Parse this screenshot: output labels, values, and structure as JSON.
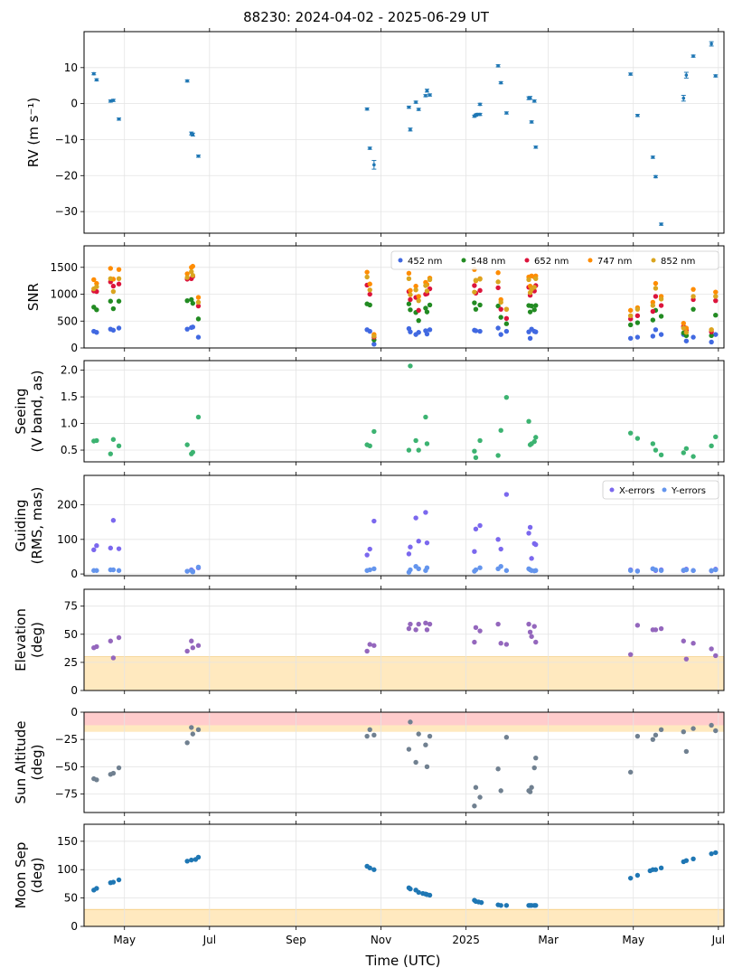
{
  "figure": {
    "title": "88230: 2024-04-02 - 2025-06-29 UT",
    "xlabel": "Time (UTC)",
    "x_range": [
      "2024-04-02",
      "2025-07-05"
    ],
    "x_ticks": [
      {
        "date": "2024-05-01",
        "label": "May"
      },
      {
        "date": "2024-07-01",
        "label": "Jul"
      },
      {
        "date": "2024-09-01",
        "label": "Sep"
      },
      {
        "date": "2024-11-01",
        "label": "Nov"
      },
      {
        "date": "2025-01-01",
        "label": "2025"
      },
      {
        "date": "2025-03-01",
        "label": "Mar"
      },
      {
        "date": "2025-05-01",
        "label": "May"
      },
      {
        "date": "2025-07-01",
        "label": "Jul"
      }
    ],
    "colors": {
      "rv": "#1f77b4",
      "seeing": "#3cb371",
      "guiding_x": "#7b68ee",
      "guiding_y": "#6495ed",
      "elevation": "#9467bd",
      "sun": "#708090",
      "moon": "#1f77b4",
      "limit_band": "#ffe9bf",
      "sun_band": "#ffcccc"
    }
  },
  "chart_data": [
    {
      "type": "scatter",
      "ylabel": "RV (m s⁻¹)",
      "ylim": [
        -36,
        20
      ],
      "yticks": [
        10,
        0,
        -10,
        -20,
        -30
      ],
      "tick_labels": [
        "10",
        "0",
        "−10",
        "−20",
        "−30"
      ],
      "errorbars": true,
      "x": [
        "2024-04-09",
        "2024-04-11",
        "2024-04-21",
        "2024-04-23",
        "2024-04-27",
        "2024-06-15",
        "2024-06-18",
        "2024-06-19",
        "2024-06-23",
        "2024-10-22",
        "2024-10-24",
        "2024-10-27",
        "2024-11-21",
        "2024-11-22",
        "2024-11-26",
        "2024-11-28",
        "2024-12-03",
        "2024-12-04",
        "2024-12-06",
        "2025-01-07",
        "2025-01-08",
        "2025-01-09",
        "2025-01-11",
        "2025-01-11",
        "2025-01-24",
        "2025-01-26",
        "2025-01-30",
        "2025-02-15",
        "2025-02-16",
        "2025-02-17",
        "2025-02-19",
        "2025-02-20",
        "2025-04-29",
        "2025-05-04",
        "2025-05-15",
        "2025-05-17",
        "2025-05-21",
        "2025-06-06",
        "2025-06-08",
        "2025-06-13",
        "2025-06-26",
        "2025-06-29"
      ],
      "values": [
        8.3,
        6.6,
        0.7,
        0.9,
        -4.3,
        6.3,
        -8.3,
        -8.6,
        -14.6,
        -1.5,
        -12.4,
        -17,
        -1,
        -7.2,
        0.4,
        -1.6,
        2.2,
        3.6,
        2.4,
        -3.5,
        -3.2,
        -3.0,
        -3.0,
        -0.2,
        10.5,
        5.8,
        -2.6,
        1.5,
        1.6,
        -5.1,
        0.7,
        -12.1,
        8.2,
        -3.3,
        -14.9,
        -20.3,
        -33.5,
        1.5,
        7.9,
        13.2,
        16.6,
        7.7
      ],
      "errors": [
        0.3,
        0.3,
        0.3,
        0.3,
        0.3,
        0.3,
        0.4,
        0.4,
        0.3,
        0.3,
        0.3,
        1.2,
        0.3,
        0.4,
        0.3,
        0.3,
        0.3,
        0.4,
        0.3,
        0.3,
        0.3,
        0.3,
        0.3,
        0.3,
        0.3,
        0.3,
        0.3,
        0.4,
        0.4,
        0.3,
        0.3,
        0.3,
        0.3,
        0.3,
        0.3,
        0.3,
        0.3,
        0.8,
        0.8,
        0.3,
        0.6,
        0.3
      ]
    },
    {
      "type": "scatter",
      "ylabel": "SNR",
      "ylim": [
        0,
        1900
      ],
      "yticks": [
        0,
        500,
        1000,
        1500
      ],
      "tick_labels": [
        "0",
        "500",
        "1000",
        "1500"
      ],
      "legend": "top-right",
      "x": [
        "2024-04-09",
        "2024-04-11",
        "2024-04-21",
        "2024-04-23",
        "2024-04-27",
        "2024-06-15",
        "2024-06-18",
        "2024-06-19",
        "2024-06-23",
        "2024-10-22",
        "2024-10-24",
        "2024-10-27",
        "2024-11-21",
        "2024-11-22",
        "2024-11-26",
        "2024-11-28",
        "2024-12-03",
        "2024-12-04",
        "2024-12-06",
        "2025-01-07",
        "2025-01-08",
        "2025-01-11",
        "2025-01-24",
        "2025-01-26",
        "2025-01-30",
        "2025-02-15",
        "2025-02-16",
        "2025-02-17",
        "2025-02-19",
        "2025-02-20",
        "2025-04-29",
        "2025-05-04",
        "2025-05-15",
        "2025-05-17",
        "2025-05-21",
        "2025-06-06",
        "2025-06-08",
        "2025-06-13",
        "2025-06-26",
        "2025-06-29"
      ],
      "series": [
        {
          "name": "452 nm",
          "color": "#4169e1",
          "values": [
            310,
            290,
            350,
            330,
            370,
            350,
            380,
            390,
            200,
            340,
            310,
            70,
            360,
            300,
            250,
            290,
            320,
            260,
            340,
            330,
            320,
            310,
            370,
            250,
            310,
            300,
            180,
            350,
            310,
            300,
            180,
            200,
            220,
            340,
            250,
            250,
            130,
            200,
            110,
            250
          ]
        },
        {
          "name": "548 nm",
          "color": "#228b22",
          "values": [
            760,
            710,
            870,
            730,
            870,
            880,
            900,
            830,
            540,
            820,
            800,
            150,
            820,
            710,
            660,
            510,
            740,
            670,
            800,
            840,
            720,
            800,
            780,
            570,
            450,
            790,
            670,
            780,
            710,
            790,
            430,
            470,
            520,
            700,
            590,
            280,
            230,
            720,
            230,
            610
          ]
        },
        {
          "name": "652 nm",
          "color": "#dc143c",
          "values": [
            1060,
            1050,
            1230,
            1150,
            1190,
            1280,
            1290,
            1330,
            780,
            1170,
            1000,
            200,
            1050,
            900,
            940,
            700,
            1000,
            1010,
            1100,
            1160,
            1020,
            1070,
            1120,
            720,
            550,
            1130,
            980,
            1100,
            1060,
            1160,
            540,
            600,
            680,
            960,
            790,
            400,
            330,
            900,
            300,
            880
          ]
        },
        {
          "name": "747 nm",
          "color": "#ff8c00",
          "values": [
            1270,
            1200,
            1480,
            1280,
            1460,
            1380,
            1500,
            1520,
            940,
            1410,
            1190,
            250,
            1390,
            1070,
            1150,
            960,
            1220,
            1180,
            1300,
            1460,
            1250,
            1290,
            1400,
            900,
            720,
            1320,
            1150,
            1340,
            1320,
            1340,
            700,
            750,
            850,
            1200,
            960,
            460,
            370,
            1090,
            340,
            1040
          ]
        },
        {
          "name": "852 nm",
          "color": "#daa520",
          "values": [
            1100,
            1140,
            1290,
            1050,
            1290,
            1310,
            1420,
            1350,
            850,
            1320,
            1080,
            220,
            1290,
            990,
            1080,
            880,
            1160,
            1060,
            1270,
            1040,
            1260,
            1280,
            1230,
            850,
            720,
            1270,
            1030,
            1090,
            1130,
            1290,
            600,
            720,
            790,
            1110,
            910,
            370,
            290,
            960,
            340,
            960
          ]
        }
      ]
    },
    {
      "type": "scatter",
      "ylabel": "Seeing\n(V band, as)",
      "ylim": [
        0.28,
        2.18
      ],
      "yticks": [
        0.5,
        1.0,
        1.5,
        2.0
      ],
      "tick_labels": [
        "0.5",
        "1.0",
        "1.5",
        "2.0"
      ],
      "x": [
        "2024-04-09",
        "2024-04-11",
        "2024-04-21",
        "2024-04-23",
        "2024-04-27",
        "2024-06-15",
        "2024-06-18",
        "2024-06-19",
        "2024-06-23",
        "2024-10-22",
        "2024-10-24",
        "2024-10-27",
        "2024-11-21",
        "2024-11-22",
        "2024-11-26",
        "2024-11-28",
        "2024-12-03",
        "2024-12-04",
        "2025-01-07",
        "2025-01-08",
        "2025-01-11",
        "2025-01-24",
        "2025-01-26",
        "2025-01-30",
        "2025-02-15",
        "2025-02-16",
        "2025-02-17",
        "2025-02-19",
        "2025-02-20",
        "2025-04-29",
        "2025-05-04",
        "2025-05-15",
        "2025-05-17",
        "2025-05-21",
        "2025-06-06",
        "2025-06-08",
        "2025-06-13",
        "2025-06-26",
        "2025-06-29"
      ],
      "values": [
        0.67,
        0.68,
        0.43,
        0.7,
        0.58,
        0.6,
        0.43,
        0.46,
        1.12,
        0.6,
        0.58,
        0.85,
        0.5,
        2.08,
        0.68,
        0.5,
        1.12,
        0.62,
        0.48,
        0.36,
        0.68,
        0.4,
        0.87,
        1.49,
        1.04,
        0.6,
        0.62,
        0.66,
        0.74,
        0.82,
        0.72,
        0.62,
        0.5,
        0.41,
        0.45,
        0.53,
        0.38,
        0.58,
        0.75
      ]
    },
    {
      "type": "scatter",
      "ylabel": "Guiding\n(RMS, mas)",
      "ylim": [
        -5,
        285
      ],
      "yticks": [
        0,
        100,
        200
      ],
      "tick_labels": [
        "0",
        "100",
        "200"
      ],
      "legend": "top-right",
      "x": [
        "2024-04-09",
        "2024-04-11",
        "2024-04-21",
        "2024-04-23",
        "2024-04-27",
        "2024-06-15",
        "2024-06-18",
        "2024-06-19",
        "2024-06-23",
        "2024-10-22",
        "2024-10-24",
        "2024-10-27",
        "2024-11-21",
        "2024-11-22",
        "2024-11-26",
        "2024-11-28",
        "2024-12-03",
        "2024-12-04",
        "2025-01-07",
        "2025-01-08",
        "2025-01-11",
        "2025-01-24",
        "2025-01-26",
        "2025-01-30",
        "2025-02-15",
        "2025-02-16",
        "2025-02-17",
        "2025-02-19",
        "2025-02-20",
        "2025-04-29",
        "2025-05-04",
        "2025-05-15",
        "2025-05-17",
        "2025-05-21",
        "2025-06-06",
        "2025-06-08",
        "2025-06-13",
        "2025-06-26",
        "2025-06-29"
      ],
      "series": [
        {
          "name": "X-errors",
          "color": "#7b68ee",
          "values": [
            70,
            82,
            75,
            155,
            73,
            8,
            12,
            8,
            18,
            55,
            72,
            153,
            58,
            78,
            162,
            95,
            178,
            90,
            65,
            130,
            140,
            100,
            72,
            230,
            118,
            135,
            45,
            88,
            85,
            12,
            9,
            15,
            10,
            12,
            10,
            14,
            10,
            9,
            14
          ]
        },
        {
          "name": "Y-errors",
          "color": "#6495ed",
          "values": [
            10,
            10,
            12,
            12,
            10,
            8,
            10,
            6,
            20,
            10,
            12,
            15,
            5,
            12,
            22,
            15,
            10,
            18,
            8,
            12,
            18,
            15,
            22,
            10,
            15,
            12,
            10,
            9,
            10,
            10,
            8,
            15,
            12,
            10,
            11,
            12,
            10,
            10,
            12
          ]
        }
      ]
    },
    {
      "type": "scatter",
      "ylabel": "Elevation\n(deg)",
      "ylim": [
        0,
        90
      ],
      "yticks": [
        0,
        25,
        50,
        75
      ],
      "tick_labels": [
        "0",
        "25",
        "50",
        "75"
      ],
      "limit_band": [
        0,
        30
      ],
      "x": [
        "2024-04-09",
        "2024-04-11",
        "2024-04-21",
        "2024-04-23",
        "2024-04-27",
        "2024-06-15",
        "2024-06-18",
        "2024-06-19",
        "2024-06-23",
        "2024-10-22",
        "2024-10-24",
        "2024-10-27",
        "2024-11-21",
        "2024-11-22",
        "2024-11-26",
        "2024-11-28",
        "2024-12-03",
        "2024-12-04",
        "2024-12-06",
        "2025-01-07",
        "2025-01-08",
        "2025-01-11",
        "2025-01-24",
        "2025-01-26",
        "2025-01-30",
        "2025-02-15",
        "2025-02-16",
        "2025-02-17",
        "2025-02-19",
        "2025-02-20",
        "2025-04-29",
        "2025-05-04",
        "2025-05-15",
        "2025-05-17",
        "2025-05-21",
        "2025-06-06",
        "2025-06-08",
        "2025-06-13",
        "2025-06-26",
        "2025-06-29"
      ],
      "values": [
        38,
        39,
        44,
        29,
        47,
        35,
        44,
        38,
        40,
        35,
        41,
        40,
        55,
        59,
        54,
        59,
        60,
        54,
        59,
        43,
        56,
        53,
        59,
        42,
        41,
        59,
        52,
        48,
        57,
        43,
        32,
        58,
        54,
        54,
        55,
        44,
        28,
        42,
        37,
        31
      ]
    },
    {
      "type": "scatter",
      "ylabel": "Sun Altitude\n(deg)",
      "ylim": [
        -92,
        0
      ],
      "yticks": [
        0,
        -25,
        -50,
        -75
      ],
      "tick_labels": [
        "0",
        "−25",
        "−50",
        "−75"
      ],
      "bands": [
        {
          "range": [
            -12,
            0
          ],
          "color": "#ffcccc"
        },
        {
          "range": [
            -18,
            -12
          ],
          "color": "#ffe9bf"
        }
      ],
      "x": [
        "2024-04-09",
        "2024-04-11",
        "2024-04-21",
        "2024-04-23",
        "2024-04-27",
        "2024-06-15",
        "2024-06-18",
        "2024-06-19",
        "2024-06-23",
        "2024-10-22",
        "2024-10-24",
        "2024-10-27",
        "2024-11-21",
        "2024-11-22",
        "2024-11-26",
        "2024-11-28",
        "2024-12-03",
        "2024-12-04",
        "2024-12-06",
        "2025-01-07",
        "2025-01-08",
        "2025-01-11",
        "2025-01-24",
        "2025-01-26",
        "2025-01-30",
        "2025-02-15",
        "2025-02-16",
        "2025-02-17",
        "2025-02-19",
        "2025-02-20",
        "2025-04-29",
        "2025-05-04",
        "2025-05-15",
        "2025-05-17",
        "2025-05-21",
        "2025-06-06",
        "2025-06-08",
        "2025-06-13",
        "2025-06-26",
        "2025-06-29"
      ],
      "values": [
        -61,
        -62,
        -57,
        -56,
        -51,
        -28,
        -14,
        -20,
        -16,
        -22,
        -16,
        -21,
        -34,
        -9,
        -46,
        -20,
        -30,
        -50,
        -22,
        -86,
        -69,
        -78,
        -52,
        -72,
        -23,
        -72,
        -73,
        -69,
        -51,
        -42,
        -55,
        -22,
        -25,
        -21,
        -16,
        -18,
        -36,
        -15,
        -12,
        -17
      ]
    },
    {
      "type": "scatter",
      "ylabel": "Moon Sep\n(deg)",
      "ylim": [
        0,
        180
      ],
      "yticks": [
        0,
        50,
        100,
        150
      ],
      "tick_labels": [
        "0",
        "50",
        "100",
        "150"
      ],
      "limit_band": [
        0,
        30
      ],
      "x": [
        "2024-04-09",
        "2024-04-11",
        "2024-04-21",
        "2024-04-23",
        "2024-04-27",
        "2024-06-15",
        "2024-06-18",
        "2024-06-21",
        "2024-06-23",
        "2024-10-22",
        "2024-10-24",
        "2024-10-27",
        "2024-11-21",
        "2024-11-22",
        "2024-11-26",
        "2024-11-28",
        "2024-12-01",
        "2024-12-03",
        "2024-12-04",
        "2024-12-06",
        "2025-01-07",
        "2025-01-08",
        "2025-01-10",
        "2025-01-12",
        "2025-01-24",
        "2025-01-26",
        "2025-01-30",
        "2025-02-15",
        "2025-02-16",
        "2025-02-17",
        "2025-02-19",
        "2025-02-20",
        "2025-04-29",
        "2025-05-04",
        "2025-05-13",
        "2025-05-15",
        "2025-05-17",
        "2025-05-21",
        "2025-06-06",
        "2025-06-08",
        "2025-06-13",
        "2025-06-26",
        "2025-06-29"
      ],
      "values": [
        64,
        67,
        77,
        78,
        82,
        115,
        117,
        118,
        122,
        106,
        103,
        100,
        68,
        66,
        64,
        60,
        58,
        57,
        56,
        55,
        46,
        44,
        43,
        42,
        38,
        37,
        37,
        37,
        37,
        37,
        37,
        37,
        85,
        90,
        98,
        100,
        100,
        103,
        114,
        116,
        119,
        128,
        130
      ]
    }
  ]
}
